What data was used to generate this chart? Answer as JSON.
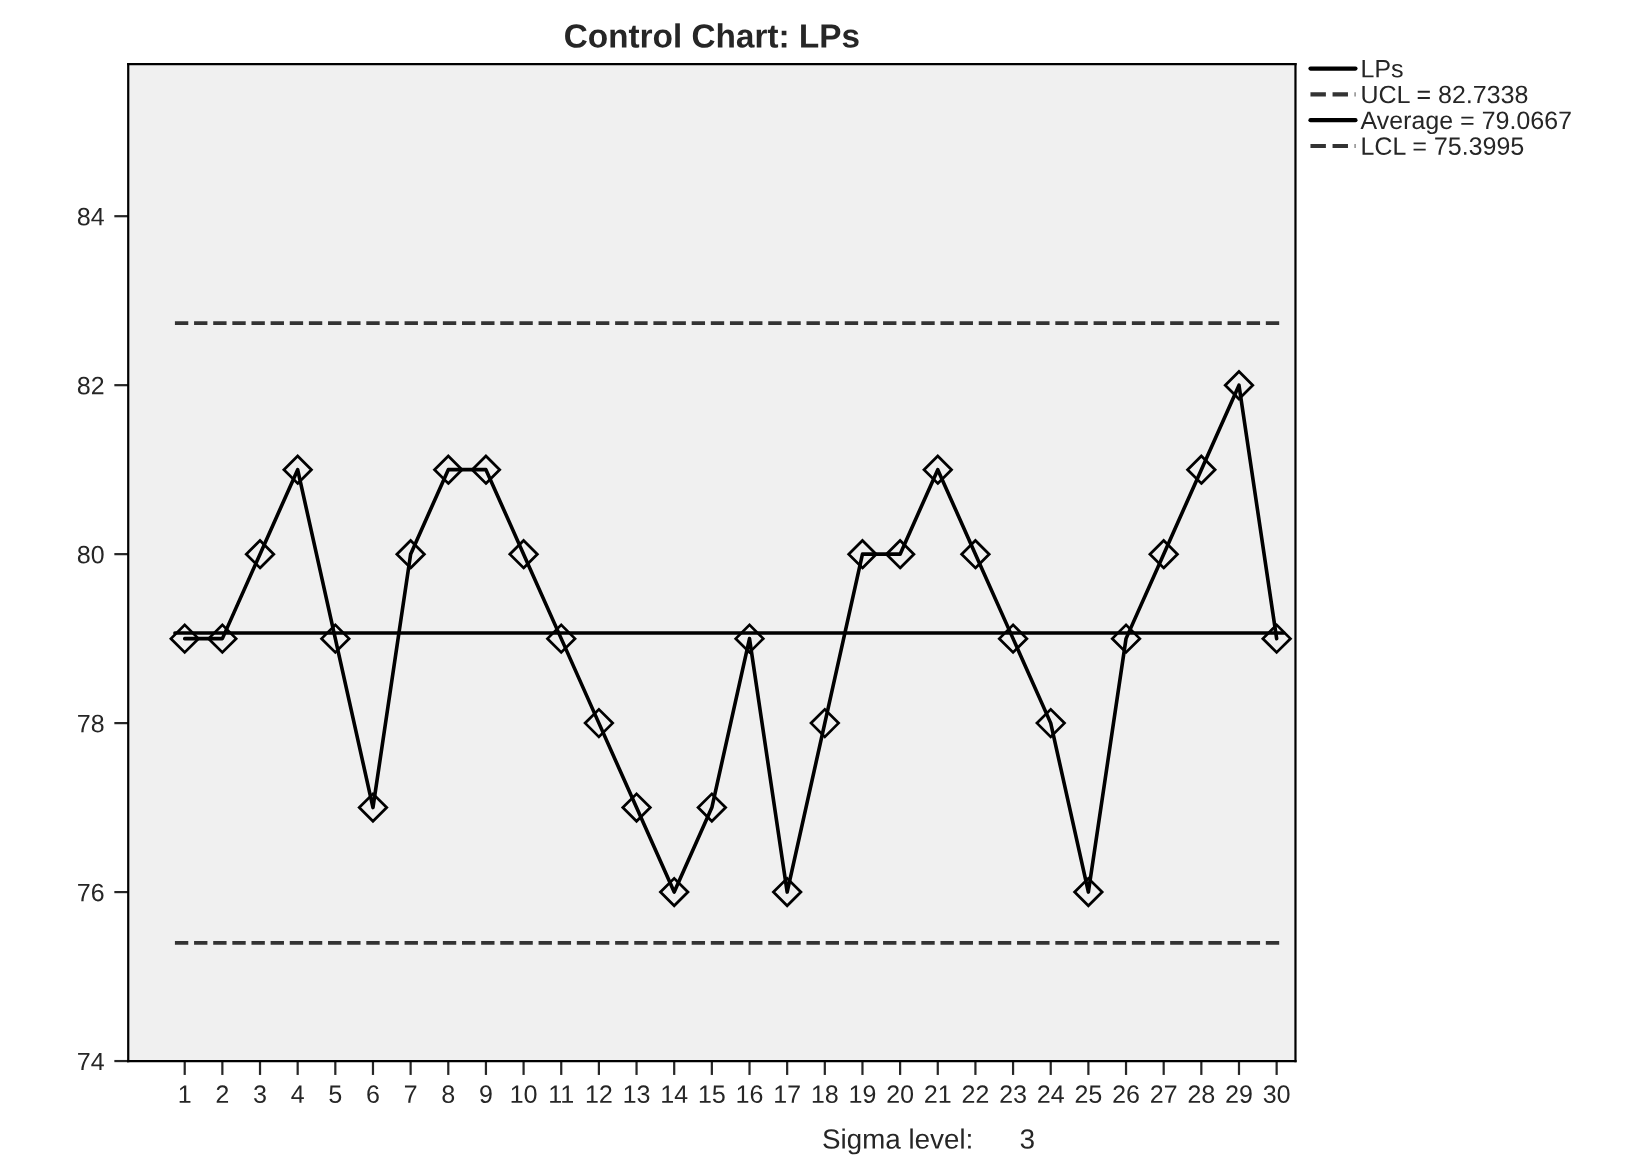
{
  "chart_data": {
    "type": "line",
    "title": "Control Chart: LPs",
    "categories": [
      "1",
      "2",
      "3",
      "4",
      "5",
      "6",
      "7",
      "8",
      "9",
      "10",
      "11",
      "12",
      "13",
      "14",
      "15",
      "16",
      "17",
      "18",
      "19",
      "20",
      "21",
      "22",
      "23",
      "24",
      "25",
      "26",
      "27",
      "28",
      "29",
      "30"
    ],
    "series": [
      {
        "name": "LPs",
        "color": "#000000",
        "values": [
          79,
          79,
          80,
          81,
          79,
          77,
          80,
          81,
          81,
          80,
          79,
          78,
          77,
          76,
          77,
          79,
          76,
          78,
          80,
          80,
          81,
          80,
          79,
          78,
          76,
          79,
          80,
          81,
          82,
          79
        ]
      }
    ],
    "ref_lines": [
      {
        "axis": "y",
        "value": 82.7338,
        "label": "UCL = 82.7338",
        "color": "#333333",
        "line_style": "dashed"
      },
      {
        "axis": "y",
        "value": 79.0667,
        "label": "Average = 79.0667",
        "color": "#000000",
        "line_style": "solid"
      },
      {
        "axis": "y",
        "value": 75.3995,
        "label": "LCL = 75.3995",
        "color": "#333333",
        "line_style": "dashed"
      }
    ],
    "ylim": [
      74,
      85.8
    ],
    "yticks": [
      74,
      76,
      78,
      80,
      82,
      84
    ],
    "marker": "diamond",
    "line_style": "solid",
    "grid": false,
    "legend": "top right",
    "annotations": [
      "Sigma level:      3"
    ]
  }
}
